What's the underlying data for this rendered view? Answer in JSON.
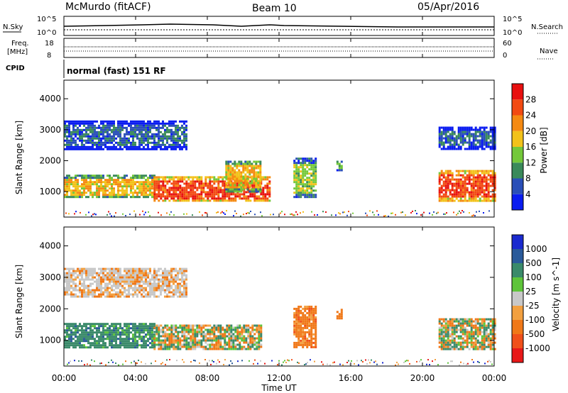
{
  "header": {
    "station": "McMurdo (fitACF)",
    "beam": "Beam 10",
    "date": "05/Apr/2016"
  },
  "status_panels": {
    "nsky_label": "N.Sky",
    "nsearch_label": "N.Search",
    "left_ticks_top": [
      "10^5",
      "10^0"
    ],
    "right_ticks_top": [
      "10^5",
      "10^0"
    ],
    "freq_label": "Freq.",
    "freq_unit": "[MHz]",
    "freq_ticks": [
      "18",
      "8"
    ],
    "nave_label": "Nave",
    "nave_ticks": [
      "60",
      "0"
    ],
    "cpid_label": "CPID",
    "cpid_text": "normal (fast) 151 RF"
  },
  "colors": {
    "power": [
      "#0a1cf0",
      "#2a4fb8",
      "#3a8a5a",
      "#74c83a",
      "#f2c21a",
      "#f58a12",
      "#f24a12",
      "#e81010"
    ],
    "velocity": [
      "#1a2acf",
      "#2a5a9a",
      "#3a8a6a",
      "#5ec43a",
      "#c8c8c8",
      "#f2a040",
      "#f07818",
      "#f0501a",
      "#e81818"
    ]
  },
  "chart_data": [
    {
      "type": "heatmap",
      "title": "",
      "xlabel": "Time UT",
      "ylabel": "Slant Range [km]",
      "x_ticks": [
        "00:00",
        "04:00",
        "08:00",
        "12:00",
        "16:00",
        "20:00",
        "00:00"
      ],
      "xlim_hours": [
        0,
        24
      ],
      "y_ticks": [
        "1000",
        "2000",
        "3000",
        "4000"
      ],
      "ylim": [
        180,
        4600
      ],
      "colorbar": {
        "label": "Power [dB]",
        "ticks": [
          "4",
          "8",
          "12",
          "16",
          "20",
          "24",
          "28"
        ],
        "range": [
          0,
          32
        ]
      },
      "regions": [
        {
          "t0": 0.0,
          "t1": 5.0,
          "r0": 800,
          "r1": 1550,
          "level": "high"
        },
        {
          "t0": 5.0,
          "t1": 11.5,
          "r0": 700,
          "r1": 1500,
          "level": "very-high"
        },
        {
          "t0": 0.0,
          "t1": 6.8,
          "r0": 2400,
          "r1": 3300,
          "level": "low"
        },
        {
          "t0": 9.0,
          "t1": 11.0,
          "r0": 1000,
          "r1": 2000,
          "level": "high"
        },
        {
          "t0": 12.8,
          "t1": 14.1,
          "r0": 800,
          "r1": 2100,
          "level": "mid"
        },
        {
          "t0": 15.2,
          "t1": 15.5,
          "r0": 1700,
          "r1": 2000,
          "level": "mid"
        },
        {
          "t0": 20.9,
          "t1": 24.0,
          "r0": 700,
          "r1": 1700,
          "level": "very-high"
        },
        {
          "t0": 20.9,
          "t1": 24.0,
          "r0": 2400,
          "r1": 3100,
          "level": "low"
        }
      ]
    },
    {
      "type": "heatmap",
      "title": "",
      "xlabel": "Time UT",
      "ylabel": "Slant Range [km]",
      "x_ticks": [
        "00:00",
        "04:00",
        "08:00",
        "12:00",
        "16:00",
        "20:00",
        "00:00"
      ],
      "xlim_hours": [
        0,
        24
      ],
      "y_ticks": [
        "1000",
        "2000",
        "3000",
        "4000"
      ],
      "ylim": [
        180,
        4600
      ],
      "colorbar": {
        "label": "Velocity [m s^-1]",
        "ticks": [
          "1000",
          "500",
          "100",
          "25",
          "-25",
          "-100",
          "-500",
          "-1000"
        ],
        "range": [
          -1000,
          1000
        ]
      },
      "regions": [
        {
          "t0": 0.0,
          "t1": 5.0,
          "r0": 800,
          "r1": 1550,
          "level": "positive"
        },
        {
          "t0": 5.0,
          "t1": 11.0,
          "r0": 700,
          "r1": 1500,
          "level": "mixed"
        },
        {
          "t0": 0.0,
          "t1": 6.8,
          "r0": 2400,
          "r1": 3300,
          "level": "near-zero"
        },
        {
          "t0": 12.8,
          "t1": 14.1,
          "r0": 800,
          "r1": 2100,
          "level": "negative"
        },
        {
          "t0": 15.2,
          "t1": 15.5,
          "r0": 1700,
          "r1": 2000,
          "level": "negative"
        },
        {
          "t0": 20.9,
          "t1": 24.0,
          "r0": 700,
          "r1": 1700,
          "level": "mixed"
        }
      ]
    }
  ]
}
